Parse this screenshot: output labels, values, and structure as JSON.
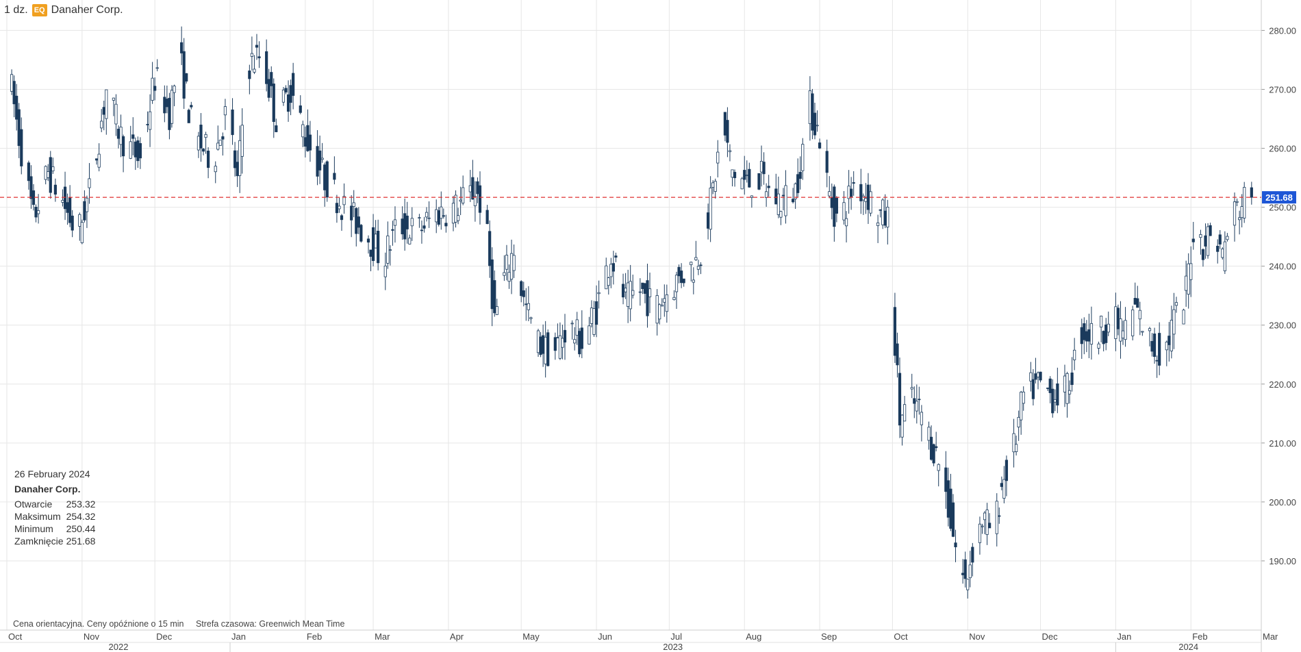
{
  "header": {
    "interval": "1 dz.",
    "badge": "EQ",
    "instrument": "Danaher Corp."
  },
  "info_box": {
    "date": "26 February 2024",
    "name": "Danaher Corp.",
    "rows": [
      {
        "label": "Otwarcie",
        "value": "253.32"
      },
      {
        "label": "Maksimum",
        "value": "254.32"
      },
      {
        "label": "Minimum",
        "value": "250.44"
      },
      {
        "label": "Zamknięcie",
        "value": "251.68"
      }
    ]
  },
  "footer": {
    "note": "Cena orientacyjna. Ceny opóźnione o 15 min",
    "timezone": "Strefa czasowa: Greenwich Mean Time"
  },
  "colors": {
    "up_fill": "#ffffff",
    "down_fill": "#1a3a5c",
    "candle_stroke": "#1a3a5c",
    "last_price_line": "#e03030",
    "last_price_label_bg": "#1e56d6",
    "grid": "#e6e6e6"
  },
  "chart_data": {
    "type": "candlestick",
    "title": "Danaher Corp.",
    "last_price": 251.68,
    "ylim": [
      180,
      284
    ],
    "y_ticks": [
      "190.00",
      "200.00",
      "210.00",
      "220.00",
      "230.00",
      "240.00",
      "250.00",
      "260.00",
      "270.00",
      "280.00"
    ],
    "x_months": [
      {
        "label": "Oct",
        "day": 0
      },
      {
        "label": "Nov",
        "day": 31
      },
      {
        "label": "Dec",
        "day": 61
      },
      {
        "label": "Jan",
        "day": 92
      },
      {
        "label": "Feb",
        "day": 123
      },
      {
        "label": "Mar",
        "day": 151
      },
      {
        "label": "Apr",
        "day": 182
      },
      {
        "label": "May",
        "day": 212
      },
      {
        "label": "Jun",
        "day": 243
      },
      {
        "label": "Jul",
        "day": 273
      },
      {
        "label": "Aug",
        "day": 304
      },
      {
        "label": "Sep",
        "day": 335
      },
      {
        "label": "Oct",
        "day": 365
      },
      {
        "label": "Nov",
        "day": 396
      },
      {
        "label": "Dec",
        "day": 426
      },
      {
        "label": "Jan",
        "day": 457
      },
      {
        "label": "Feb",
        "day": 488
      },
      {
        "label": "Mar",
        "day": 517
      }
    ],
    "x_years": [
      {
        "label": "2022",
        "from_day": 0,
        "to_day": 92
      },
      {
        "label": "2023",
        "from_day": 92,
        "to_day": 457
      },
      {
        "label": "2024",
        "from_day": 457,
        "to_day": 517
      }
    ],
    "price_path": [
      {
        "day": 0,
        "close": 278
      },
      {
        "day": 6,
        "close": 262
      },
      {
        "day": 12,
        "close": 248
      },
      {
        "day": 18,
        "close": 256
      },
      {
        "day": 24,
        "close": 251
      },
      {
        "day": 30,
        "close": 245
      },
      {
        "day": 36,
        "close": 254
      },
      {
        "day": 42,
        "close": 270
      },
      {
        "day": 48,
        "close": 262
      },
      {
        "day": 56,
        "close": 258
      },
      {
        "day": 62,
        "close": 272
      },
      {
        "day": 68,
        "close": 266
      },
      {
        "day": 72,
        "close": 276
      },
      {
        "day": 78,
        "close": 262
      },
      {
        "day": 86,
        "close": 258
      },
      {
        "day": 92,
        "close": 267
      },
      {
        "day": 96,
        "close": 254
      },
      {
        "day": 100,
        "close": 274
      },
      {
        "day": 106,
        "close": 276
      },
      {
        "day": 112,
        "close": 265
      },
      {
        "day": 118,
        "close": 270
      },
      {
        "day": 124,
        "close": 262
      },
      {
        "day": 132,
        "close": 255
      },
      {
        "day": 140,
        "close": 250
      },
      {
        "day": 150,
        "close": 245
      },
      {
        "day": 156,
        "close": 241
      },
      {
        "day": 162,
        "close": 247
      },
      {
        "day": 170,
        "close": 246
      },
      {
        "day": 178,
        "close": 249
      },
      {
        "day": 186,
        "close": 250
      },
      {
        "day": 194,
        "close": 253
      },
      {
        "day": 198,
        "close": 249
      },
      {
        "day": 202,
        "close": 231
      },
      {
        "day": 206,
        "close": 238
      },
      {
        "day": 210,
        "close": 243
      },
      {
        "day": 214,
        "close": 234
      },
      {
        "day": 220,
        "close": 227
      },
      {
        "day": 226,
        "close": 225
      },
      {
        "day": 232,
        "close": 230
      },
      {
        "day": 238,
        "close": 227
      },
      {
        "day": 244,
        "close": 233
      },
      {
        "day": 250,
        "close": 242
      },
      {
        "day": 256,
        "close": 234
      },
      {
        "day": 262,
        "close": 236
      },
      {
        "day": 268,
        "close": 233
      },
      {
        "day": 274,
        "close": 236
      },
      {
        "day": 280,
        "close": 239
      },
      {
        "day": 284,
        "close": 240
      },
      {
        "day": 288,
        "close": 244
      },
      {
        "day": 292,
        "close": 253
      },
      {
        "day": 296,
        "close": 264
      },
      {
        "day": 300,
        "close": 256
      },
      {
        "day": 306,
        "close": 254
      },
      {
        "day": 312,
        "close": 255
      },
      {
        "day": 316,
        "close": 252
      },
      {
        "day": 320,
        "close": 251
      },
      {
        "day": 326,
        "close": 253
      },
      {
        "day": 332,
        "close": 267
      },
      {
        "day": 336,
        "close": 262
      },
      {
        "day": 340,
        "close": 252
      },
      {
        "day": 344,
        "close": 247
      },
      {
        "day": 350,
        "close": 254
      },
      {
        "day": 356,
        "close": 252
      },
      {
        "day": 360,
        "close": 249
      },
      {
        "day": 364,
        "close": 248
      },
      {
        "day": 369,
        "close": 214
      },
      {
        "day": 374,
        "close": 217
      },
      {
        "day": 378,
        "close": 215
      },
      {
        "day": 382,
        "close": 210
      },
      {
        "day": 386,
        "close": 206
      },
      {
        "day": 390,
        "close": 197
      },
      {
        "day": 393,
        "close": 190
      },
      {
        "day": 396,
        "close": 186
      },
      {
        "day": 399,
        "close": 192
      },
      {
        "day": 403,
        "close": 197
      },
      {
        "day": 408,
        "close": 195
      },
      {
        "day": 411,
        "close": 203
      },
      {
        "day": 416,
        "close": 209
      },
      {
        "day": 420,
        "close": 218
      },
      {
        "day": 426,
        "close": 220
      },
      {
        "day": 432,
        "close": 218
      },
      {
        "day": 438,
        "close": 219
      },
      {
        "day": 444,
        "close": 229
      },
      {
        "day": 450,
        "close": 228
      },
      {
        "day": 456,
        "close": 231
      },
      {
        "day": 462,
        "close": 229
      },
      {
        "day": 466,
        "close": 233
      },
      {
        "day": 470,
        "close": 229
      },
      {
        "day": 474,
        "close": 226
      },
      {
        "day": 478,
        "close": 225
      },
      {
        "day": 482,
        "close": 231
      },
      {
        "day": 486,
        "close": 233
      },
      {
        "day": 490,
        "close": 246
      },
      {
        "day": 494,
        "close": 244
      },
      {
        "day": 498,
        "close": 246
      },
      {
        "day": 502,
        "close": 242
      },
      {
        "day": 506,
        "close": 249
      },
      {
        "day": 509,
        "close": 250
      },
      {
        "day": 512,
        "close": 252
      }
    ],
    "last_candle": {
      "date": "26 February 2024",
      "open": 253.32,
      "high": 254.32,
      "low": 250.44,
      "close": 251.68
    }
  }
}
